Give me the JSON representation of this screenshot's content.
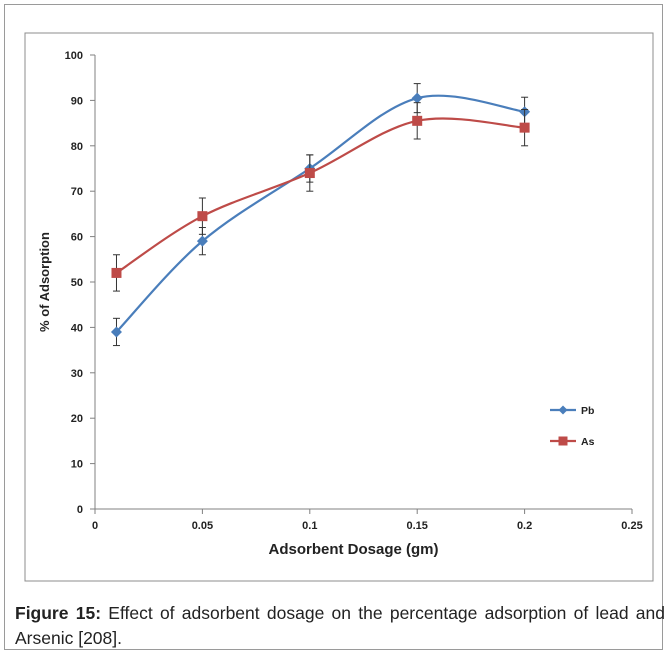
{
  "caption": {
    "label": "Figure 15:",
    "text": " Effect of adsorbent dosage on the percentage adsorption of lead and Arsenic [208]."
  },
  "chart_data": {
    "type": "line",
    "title": "",
    "xlabel": "Adsorbent Dosage (gm)",
    "ylabel": "% of Adsorption",
    "xlim": [
      0,
      0.25
    ],
    "ylim": [
      0,
      100
    ],
    "x_ticks": [
      "0",
      "0.05",
      "0.1",
      "0.15",
      "0.2",
      "0.25"
    ],
    "y_ticks": [
      "0",
      "10",
      "20",
      "30",
      "40",
      "50",
      "60",
      "70",
      "80",
      "90",
      "100"
    ],
    "grid": false,
    "legend_position": "right",
    "series": [
      {
        "name": "Pb",
        "color": "#4a7ebb",
        "marker": "diamond",
        "x": [
          0.01,
          0.05,
          0.1,
          0.15,
          0.2
        ],
        "y": [
          39,
          59,
          75,
          90.5,
          87.5
        ],
        "error": [
          3,
          3,
          3,
          3.2,
          3.2
        ]
      },
      {
        "name": "As",
        "color": "#be4b48",
        "marker": "square",
        "x": [
          0.01,
          0.05,
          0.1,
          0.15,
          0.2
        ],
        "y": [
          52,
          64.5,
          74,
          85.5,
          84
        ],
        "error": [
          4,
          4,
          4,
          4,
          4
        ]
      }
    ]
  }
}
